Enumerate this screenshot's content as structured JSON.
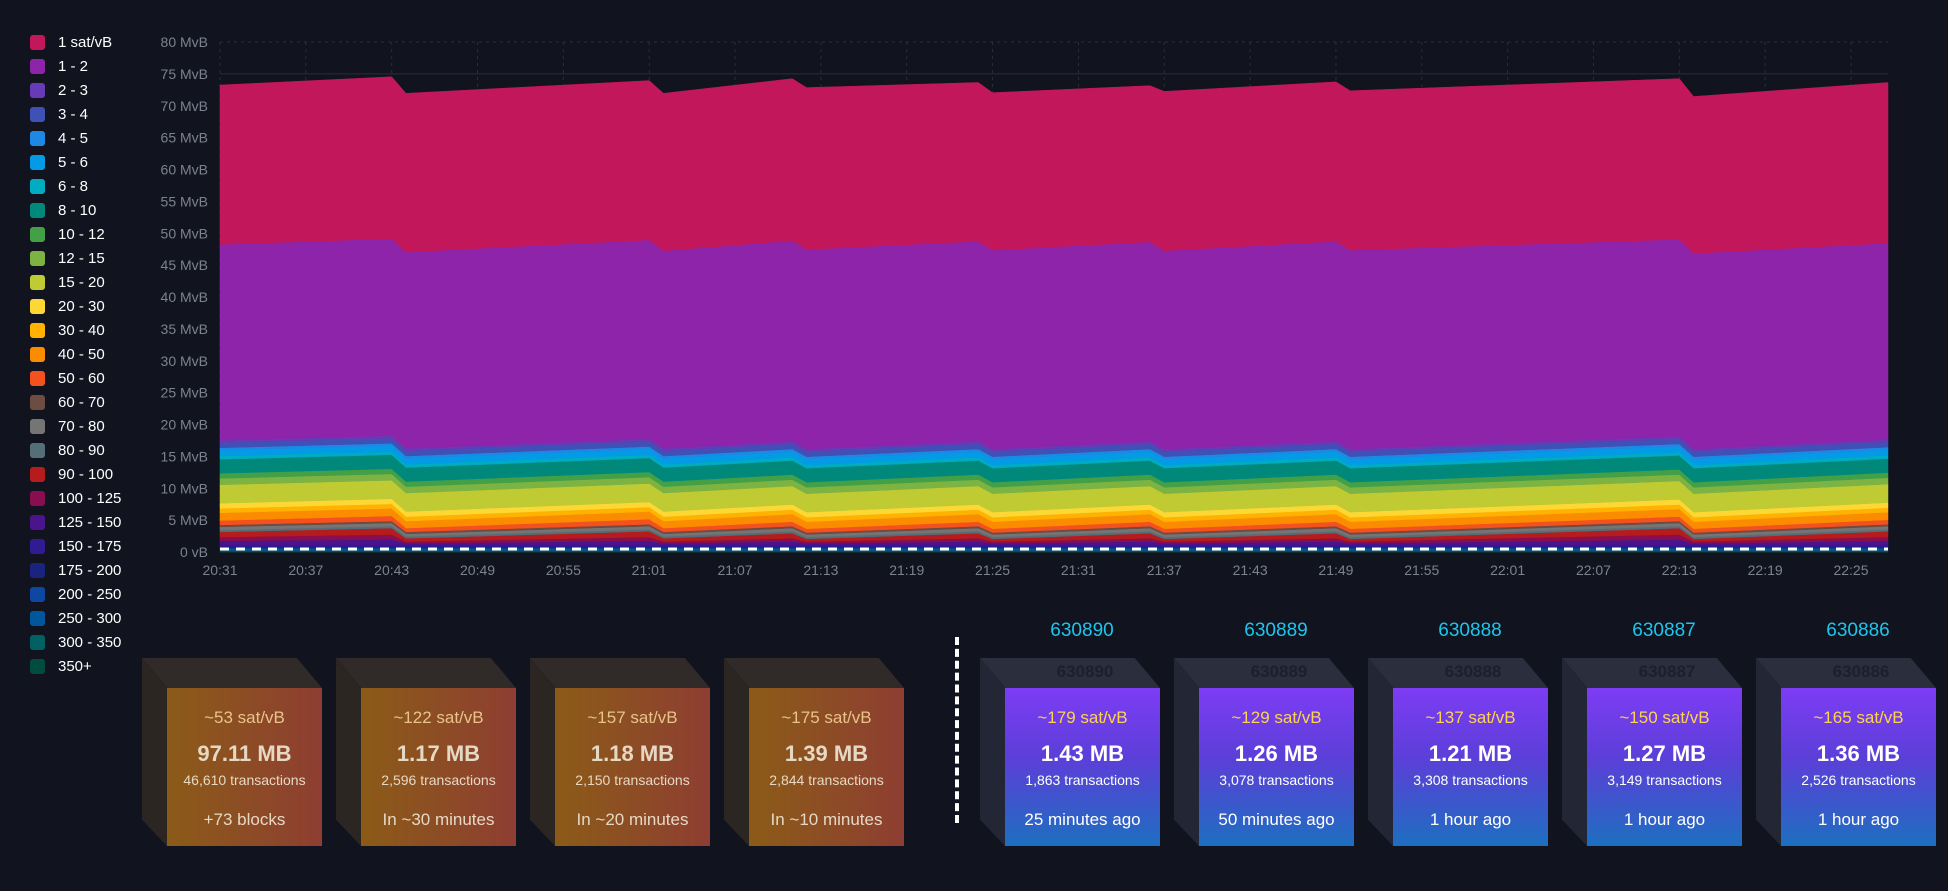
{
  "legend": [
    {
      "label": "1 sat/vB",
      "color": "#c2185b"
    },
    {
      "label": "1 - 2",
      "color": "#8e24aa"
    },
    {
      "label": "2 - 3",
      "color": "#673ab7"
    },
    {
      "label": "3 - 4",
      "color": "#3f51b5"
    },
    {
      "label": "4 - 5",
      "color": "#1e88e5"
    },
    {
      "label": "5 - 6",
      "color": "#039be5"
    },
    {
      "label": "6 - 8",
      "color": "#00acc1"
    },
    {
      "label": "8 - 10",
      "color": "#00897b"
    },
    {
      "label": "10 - 12",
      "color": "#43a047"
    },
    {
      "label": "12 - 15",
      "color": "#7cb342"
    },
    {
      "label": "15 - 20",
      "color": "#c0ca33"
    },
    {
      "label": "20 - 30",
      "color": "#fdd835"
    },
    {
      "label": "30 - 40",
      "color": "#ffb300"
    },
    {
      "label": "40 - 50",
      "color": "#fb8c00"
    },
    {
      "label": "50 - 60",
      "color": "#f4511e"
    },
    {
      "label": "60 - 70",
      "color": "#6d4c41"
    },
    {
      "label": "70 - 80",
      "color": "#757575"
    },
    {
      "label": "80 - 90",
      "color": "#546e7a"
    },
    {
      "label": "90 - 100",
      "color": "#b71c1c"
    },
    {
      "label": "100 - 125",
      "color": "#880e4f"
    },
    {
      "label": "125 - 150",
      "color": "#4a148c"
    },
    {
      "label": "150 - 175",
      "color": "#311b92"
    },
    {
      "label": "175 - 200",
      "color": "#1a237e"
    },
    {
      "label": "200 - 250",
      "color": "#0d47a1"
    },
    {
      "label": "250 - 300",
      "color": "#01579b"
    },
    {
      "label": "300 - 350",
      "color": "#006064"
    },
    {
      "label": "350+",
      "color": "#004d40"
    }
  ],
  "chart_data": {
    "type": "area",
    "stacked": true,
    "y_ticks": [
      "0 vB",
      "5 MvB",
      "10 MvB",
      "15 MvB",
      "20 MvB",
      "25 MvB",
      "30 MvB",
      "35 MvB",
      "40 MvB",
      "45 MvB",
      "50 MvB",
      "55 MvB",
      "60 MvB",
      "65 MvB",
      "70 MvB",
      "75 MvB",
      "80 MvB"
    ],
    "x_ticks": [
      "20:31",
      "20:37",
      "20:43",
      "20:49",
      "20:55",
      "21:01",
      "21:07",
      "21:13",
      "21:19",
      "21:25",
      "21:31",
      "21:37",
      "21:43",
      "21:49",
      "21:55",
      "22:01",
      "22:07",
      "22:13",
      "22:19",
      "22:25"
    ],
    "ylim": [
      0,
      80
    ],
    "y_unit": "MvB",
    "x": [
      "20:31",
      "20:43",
      "20:44",
      "21:01",
      "21:02",
      "21:11",
      "21:12",
      "21:24",
      "21:25",
      "21:36",
      "21:37",
      "21:49",
      "21:50",
      "22:13",
      "22:14",
      "22:31"
    ],
    "series": [
      {
        "name": "350+",
        "color": "#004d40",
        "values": [
          0.15,
          0.15,
          0.15,
          0.15,
          0.15,
          0.15,
          0.15,
          0.15,
          0.15,
          0.15,
          0.15,
          0.15,
          0.15,
          0.15,
          0.15,
          0.15
        ]
      },
      {
        "name": "300 - 350",
        "color": "#006064",
        "values": [
          0.15,
          0.15,
          0.15,
          0.15,
          0.15,
          0.15,
          0.15,
          0.15,
          0.15,
          0.15,
          0.15,
          0.15,
          0.15,
          0.15,
          0.15,
          0.15
        ]
      },
      {
        "name": "250 - 300",
        "color": "#01579b",
        "values": [
          0.15,
          0.15,
          0.15,
          0.15,
          0.15,
          0.15,
          0.15,
          0.15,
          0.15,
          0.15,
          0.15,
          0.15,
          0.15,
          0.15,
          0.15,
          0.15
        ]
      },
      {
        "name": "200 - 250",
        "color": "#0d47a1",
        "values": [
          0.2,
          0.2,
          0.2,
          0.2,
          0.2,
          0.2,
          0.2,
          0.2,
          0.2,
          0.2,
          0.2,
          0.2,
          0.2,
          0.2,
          0.2,
          0.2
        ]
      },
      {
        "name": "175 - 200",
        "color": "#1a237e",
        "values": [
          0.2,
          0.2,
          0.2,
          0.2,
          0.2,
          0.2,
          0.2,
          0.2,
          0.2,
          0.2,
          0.2,
          0.2,
          0.2,
          0.2,
          0.2,
          0.2
        ]
      },
      {
        "name": "150 - 175",
        "color": "#311b92",
        "values": [
          0.3,
          0.3,
          0.3,
          0.3,
          0.3,
          0.3,
          0.3,
          0.3,
          0.3,
          0.3,
          0.3,
          0.3,
          0.3,
          0.3,
          0.3,
          0.3
        ]
      },
      {
        "name": "125 - 150",
        "color": "#4a148c",
        "values": [
          0.6,
          0.8,
          0.2,
          0.6,
          0.2,
          0.5,
          0.2,
          0.5,
          0.2,
          0.5,
          0.2,
          0.5,
          0.2,
          0.8,
          0.2,
          0.6
        ]
      },
      {
        "name": "100 - 125",
        "color": "#880e4f",
        "values": [
          0.6,
          0.8,
          0.3,
          0.6,
          0.3,
          0.5,
          0.3,
          0.5,
          0.3,
          0.5,
          0.3,
          0.5,
          0.3,
          0.8,
          0.3,
          0.6
        ]
      },
      {
        "name": "90 - 100",
        "color": "#b71c1c",
        "values": [
          0.8,
          1.0,
          0.5,
          0.9,
          0.5,
          0.8,
          0.4,
          0.8,
          0.4,
          0.8,
          0.4,
          0.8,
          0.4,
          1.0,
          0.4,
          0.9
        ]
      },
      {
        "name": "80 - 90",
        "color": "#546e7a",
        "values": [
          0.3,
          0.3,
          0.3,
          0.3,
          0.3,
          0.3,
          0.3,
          0.3,
          0.3,
          0.3,
          0.3,
          0.3,
          0.3,
          0.3,
          0.3,
          0.3
        ]
      },
      {
        "name": "70 - 80",
        "color": "#757575",
        "values": [
          0.5,
          0.5,
          0.4,
          0.5,
          0.4,
          0.5,
          0.4,
          0.5,
          0.4,
          0.5,
          0.4,
          0.5,
          0.4,
          0.5,
          0.4,
          0.5
        ]
      },
      {
        "name": "60 - 70",
        "color": "#6d4c41",
        "values": [
          0.3,
          0.3,
          0.3,
          0.3,
          0.3,
          0.3,
          0.3,
          0.3,
          0.3,
          0.3,
          0.3,
          0.3,
          0.3,
          0.3,
          0.3,
          0.3
        ]
      },
      {
        "name": "50 - 60",
        "color": "#f4511e",
        "values": [
          0.7,
          0.8,
          0.6,
          0.8,
          0.6,
          0.7,
          0.6,
          0.7,
          0.6,
          0.7,
          0.6,
          0.7,
          0.6,
          0.7,
          0.6,
          0.7
        ]
      },
      {
        "name": "40 - 50",
        "color": "#fb8c00",
        "values": [
          1.2,
          1.2,
          1.1,
          1.2,
          1.1,
          1.2,
          1.1,
          1.2,
          1.1,
          1.2,
          1.1,
          1.2,
          1.1,
          1.2,
          1.1,
          1.2
        ]
      },
      {
        "name": "30 - 40",
        "color": "#ffb300",
        "values": [
          0.7,
          0.7,
          0.7,
          0.7,
          0.7,
          0.7,
          0.7,
          0.7,
          0.7,
          0.7,
          0.7,
          0.7,
          0.7,
          0.7,
          0.7,
          0.7
        ]
      },
      {
        "name": "20 - 30",
        "color": "#fdd835",
        "values": [
          0.8,
          0.8,
          0.8,
          0.8,
          0.8,
          0.8,
          0.8,
          0.8,
          0.8,
          0.8,
          0.8,
          0.8,
          0.8,
          0.8,
          0.8,
          0.8
        ]
      },
      {
        "name": "15 - 20",
        "color": "#c0ca33",
        "values": [
          2.9,
          2.9,
          2.9,
          2.9,
          2.9,
          2.9,
          2.9,
          2.9,
          2.9,
          2.9,
          2.9,
          2.9,
          2.9,
          2.9,
          2.9,
          2.9
        ]
      },
      {
        "name": "12 - 15",
        "color": "#7cb342",
        "values": [
          1.0,
          1.0,
          1.0,
          1.0,
          1.0,
          1.0,
          1.0,
          1.0,
          1.0,
          1.0,
          1.0,
          1.0,
          1.0,
          1.0,
          1.0,
          1.0
        ]
      },
      {
        "name": "10 - 12",
        "color": "#43a047",
        "values": [
          0.8,
          0.8,
          0.8,
          0.8,
          0.8,
          0.8,
          0.8,
          0.8,
          0.8,
          0.8,
          0.8,
          0.8,
          0.8,
          0.8,
          0.8,
          0.8
        ]
      },
      {
        "name": "8 - 10",
        "color": "#00897b",
        "values": [
          2.2,
          2.2,
          2.2,
          2.2,
          2.2,
          2.2,
          2.2,
          2.2,
          2.2,
          2.2,
          2.2,
          2.2,
          2.2,
          2.2,
          2.2,
          2.2
        ]
      },
      {
        "name": "6 - 8",
        "color": "#00acc1",
        "values": [
          0.5,
          0.5,
          0.5,
          0.5,
          0.5,
          0.5,
          0.5,
          0.5,
          0.5,
          0.5,
          0.5,
          0.5,
          0.5,
          0.5,
          0.5,
          0.5
        ]
      },
      {
        "name": "5 - 6",
        "color": "#039be5",
        "values": [
          0.9,
          0.9,
          0.9,
          0.9,
          0.9,
          0.9,
          0.9,
          0.9,
          0.9,
          0.9,
          0.9,
          0.9,
          0.9,
          0.9,
          0.9,
          0.9
        ]
      },
      {
        "name": "4 - 5",
        "color": "#1e88e5",
        "values": [
          0.4,
          0.4,
          0.4,
          0.4,
          0.4,
          0.4,
          0.4,
          0.4,
          0.4,
          0.4,
          0.4,
          0.4,
          0.4,
          0.4,
          0.4,
          0.4
        ]
      },
      {
        "name": "3 - 4",
        "color": "#3f51b5",
        "values": [
          0.8,
          0.8,
          0.8,
          0.8,
          0.8,
          0.8,
          0.8,
          0.8,
          0.8,
          0.8,
          0.8,
          0.8,
          0.8,
          0.8,
          0.8,
          0.8
        ]
      },
      {
        "name": "2 - 3",
        "color": "#673ab7",
        "values": [
          0.4,
          0.4,
          0.4,
          0.4,
          0.4,
          0.4,
          0.4,
          0.4,
          0.4,
          0.4,
          0.4,
          0.4,
          0.4,
          0.4,
          0.4,
          0.4
        ]
      },
      {
        "name": "1 - 2",
        "color": "#8e24aa",
        "values": [
          30.7,
          30.9,
          30.8,
          31.2,
          31.0,
          31.5,
          31.3,
          31.4,
          31.2,
          31.3,
          31.1,
          31.4,
          31.2,
          30.9,
          30.7,
          30.8
        ]
      },
      {
        "name": "1 sat/vB",
        "color": "#c2185b",
        "values": [
          25.0,
          25.4,
          24.9,
          25.0,
          24.7,
          25.4,
          25.4,
          24.9,
          24.7,
          24.5,
          25.0,
          25.0,
          25.0,
          25.2,
          24.6,
          25.2
        ]
      }
    ]
  },
  "projected_blocks": [
    {
      "fee": "~53 sat/vB",
      "size": "97.11 MB",
      "txs": "46,610 transactions",
      "time": "+73 blocks"
    },
    {
      "fee": "~122 sat/vB",
      "size": "1.17 MB",
      "txs": "2,596 transactions",
      "time": "In ~30 minutes"
    },
    {
      "fee": "~157 sat/vB",
      "size": "1.18 MB",
      "txs": "2,150 transactions",
      "time": "In ~20 minutes"
    },
    {
      "fee": "~175 sat/vB",
      "size": "1.39 MB",
      "txs": "2,844 transactions",
      "time": "In ~10 minutes"
    }
  ],
  "mined_blocks": [
    {
      "height": "630890",
      "fee": "~179 sat/vB",
      "size": "1.43 MB",
      "txs": "1,863 transactions",
      "time": "25 minutes ago"
    },
    {
      "height": "630889",
      "fee": "~129 sat/vB",
      "size": "1.26 MB",
      "txs": "3,078 transactions",
      "time": "50 minutes ago"
    },
    {
      "height": "630888",
      "fee": "~137 sat/vB",
      "size": "1.21 MB",
      "txs": "3,308 transactions",
      "time": "1 hour ago"
    },
    {
      "height": "630887",
      "fee": "~150 sat/vB",
      "size": "1.27 MB",
      "txs": "3,149 transactions",
      "time": "1 hour ago"
    },
    {
      "height": "630886",
      "fee": "~165 sat/vB",
      "size": "1.36 MB",
      "txs": "2,526 transactions",
      "time": "1 hour ago"
    }
  ]
}
